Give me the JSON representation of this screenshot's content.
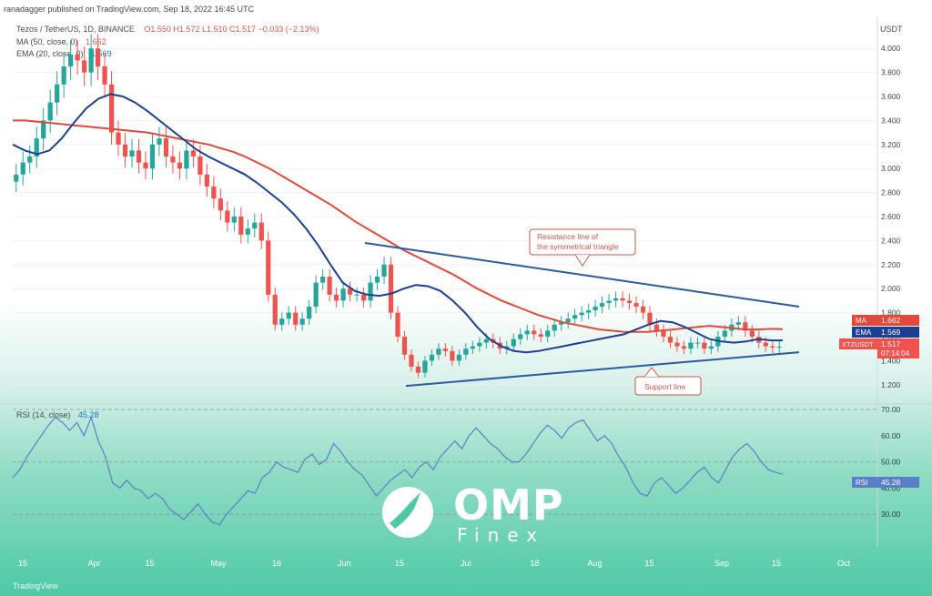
{
  "header": {
    "published": "ranadagger published on TradingView.com, Sep 18, 2022 16:45 UTC",
    "symbol": "Tezos / TetherUS, 1D, BINANCE",
    "ohlc": "O1.550  H1.572  L1.510  C1.517  −0.033 (−2.13%)",
    "ma_label": "MA (50, close, 0)",
    "ma_value": "1.662",
    "ema_label": "EMA (20, close, 0)",
    "ema_value": "1.569",
    "rsi_label": "RSI (14, close)",
    "rsi_value": "45.28",
    "currency": "USDT",
    "branding": "TradingView"
  },
  "colors": {
    "up": "#26a69a",
    "down": "#ef5350",
    "ma": "#e0493b",
    "ema": "#1c3f94",
    "trendline": "#2a5b9e",
    "rsi": "#5b7ec9"
  },
  "annotations": {
    "resistance": [
      "Resistance line of",
      "the symmetrical triangle"
    ],
    "support": "Support line"
  },
  "badges": {
    "ma": {
      "label": "MA",
      "value": "1.662"
    },
    "ema": {
      "label": "EMA",
      "value": "1.569"
    },
    "price": {
      "label": "XTZUSDT",
      "value": "1.517",
      "time": "07:14:04"
    },
    "rsi": {
      "label": "RSI",
      "value": "45.28"
    }
  },
  "watermark": {
    "brand": "OMP",
    "sub": "Finex"
  },
  "chart_data": {
    "type": "candlestick",
    "price_axis": {
      "min": 1.1,
      "max": 4.1,
      "ticks": [
        "1.200",
        "1.400",
        "1.600",
        "1.800",
        "2.000",
        "2.200",
        "2.400",
        "2.600",
        "2.800",
        "3.000",
        "3.200",
        "3.400",
        "3.600",
        "3.800",
        "4.000"
      ]
    },
    "rsi_axis": {
      "min": 20,
      "max": 70,
      "ticks": [
        "30.00",
        "40.00",
        "50.00",
        "60.00",
        "70.00"
      ],
      "bands": [
        30,
        50,
        70
      ]
    },
    "x_ticks": [
      "15",
      "Apr",
      "15",
      "May",
      "16",
      "Jun",
      "15",
      "Jul",
      "18",
      "Aug",
      "15",
      "Sep",
      "15",
      "Oct"
    ],
    "x_tick_days": [
      0,
      17,
      31,
      47,
      62,
      78,
      92,
      108,
      125,
      139,
      153,
      170,
      184,
      200
    ],
    "close": [
      2.95,
      3.05,
      3.1,
      3.25,
      3.4,
      3.55,
      3.7,
      3.85,
      3.95,
      3.9,
      3.8,
      4.0,
      3.85,
      3.7,
      3.3,
      3.2,
      3.1,
      3.15,
      3.05,
      3.0,
      3.2,
      3.25,
      3.1,
      3.05,
      3.0,
      3.15,
      3.1,
      2.95,
      2.85,
      2.75,
      2.65,
      2.55,
      2.6,
      2.45,
      2.5,
      2.55,
      2.4,
      1.95,
      1.7,
      1.75,
      1.8,
      1.7,
      1.75,
      1.85,
      2.05,
      2.1,
      1.95,
      1.9,
      2.0,
      1.95,
      1.95,
      1.9,
      2.05,
      2.1,
      2.2,
      1.8,
      1.6,
      1.45,
      1.35,
      1.3,
      1.4,
      1.45,
      1.5,
      1.48,
      1.4,
      1.45,
      1.5,
      1.52,
      1.55,
      1.58,
      1.55,
      1.5,
      1.52,
      1.58,
      1.62,
      1.65,
      1.62,
      1.6,
      1.65,
      1.7,
      1.72,
      1.75,
      1.78,
      1.8,
      1.82,
      1.85,
      1.88,
      1.9,
      1.92,
      1.9,
      1.88,
      1.85,
      1.8,
      1.7,
      1.65,
      1.6,
      1.55,
      1.52,
      1.5,
      1.55,
      1.55,
      1.5,
      1.52,
      1.6,
      1.65,
      1.7,
      1.72,
      1.65,
      1.6,
      1.55,
      1.52,
      1.51,
      1.517
    ],
    "ma50": [
      3.4,
      3.4,
      3.39,
      3.38,
      3.37,
      3.36,
      3.35,
      3.34,
      3.33,
      3.32,
      3.31,
      3.3,
      3.28,
      3.26,
      3.24,
      3.22,
      3.2,
      3.17,
      3.14,
      3.1,
      3.05,
      3.0,
      2.94,
      2.88,
      2.82,
      2.76,
      2.7,
      2.63,
      2.56,
      2.5,
      2.44,
      2.38,
      2.32,
      2.27,
      2.22,
      2.17,
      2.12,
      2.06,
      2.0,
      1.95,
      1.9,
      1.86,
      1.82,
      1.78,
      1.75,
      1.72,
      1.7,
      1.68,
      1.66,
      1.65,
      1.64,
      1.64,
      1.64,
      1.65,
      1.66,
      1.67,
      1.68,
      1.69,
      1.68,
      1.67,
      1.66,
      1.66,
      1.665,
      1.662
    ],
    "ema20": [
      3.2,
      3.15,
      3.12,
      3.15,
      3.25,
      3.38,
      3.5,
      3.58,
      3.62,
      3.6,
      3.55,
      3.48,
      3.4,
      3.32,
      3.24,
      3.16,
      3.1,
      3.05,
      3.0,
      2.95,
      2.88,
      2.8,
      2.72,
      2.62,
      2.5,
      2.36,
      2.2,
      2.05,
      1.98,
      1.95,
      1.94,
      1.96,
      2.0,
      2.03,
      2.02,
      1.98,
      1.9,
      1.8,
      1.68,
      1.58,
      1.52,
      1.48,
      1.47,
      1.48,
      1.5,
      1.52,
      1.54,
      1.56,
      1.58,
      1.6,
      1.62,
      1.66,
      1.7,
      1.73,
      1.72,
      1.68,
      1.63,
      1.58,
      1.56,
      1.55,
      1.56,
      1.58,
      1.57,
      1.569
    ],
    "rsi": [
      44,
      47,
      52,
      56,
      60,
      64,
      67,
      65,
      62,
      65,
      60,
      67,
      58,
      52,
      42,
      40,
      43,
      40,
      39,
      36,
      38,
      36,
      32,
      30,
      28,
      31,
      34,
      30,
      27,
      26,
      30,
      33,
      36,
      39,
      38,
      44,
      46,
      50,
      48,
      47,
      46,
      51,
      53,
      49,
      51,
      57,
      54,
      50,
      47,
      45,
      41,
      37,
      40,
      43,
      45,
      47,
      44,
      48,
      50,
      47,
      52,
      55,
      58,
      55,
      60,
      63,
      60,
      57,
      55,
      52,
      50,
      50,
      53,
      57,
      61,
      64,
      62,
      59,
      63,
      65,
      66,
      62,
      58,
      60,
      57,
      52,
      48,
      42,
      38,
      37,
      42,
      44,
      41,
      38,
      40,
      43,
      46,
      48,
      44,
      42,
      47,
      52,
      55,
      57,
      54,
      50,
      47,
      46,
      45.28
    ],
    "resistance_line": [
      {
        "day": 86,
        "price": 2.38
      },
      {
        "day": 192,
        "price": 1.85
      }
    ],
    "support_line": [
      {
        "day": 96,
        "price": 1.19
      },
      {
        "day": 192,
        "price": 1.47
      }
    ]
  }
}
